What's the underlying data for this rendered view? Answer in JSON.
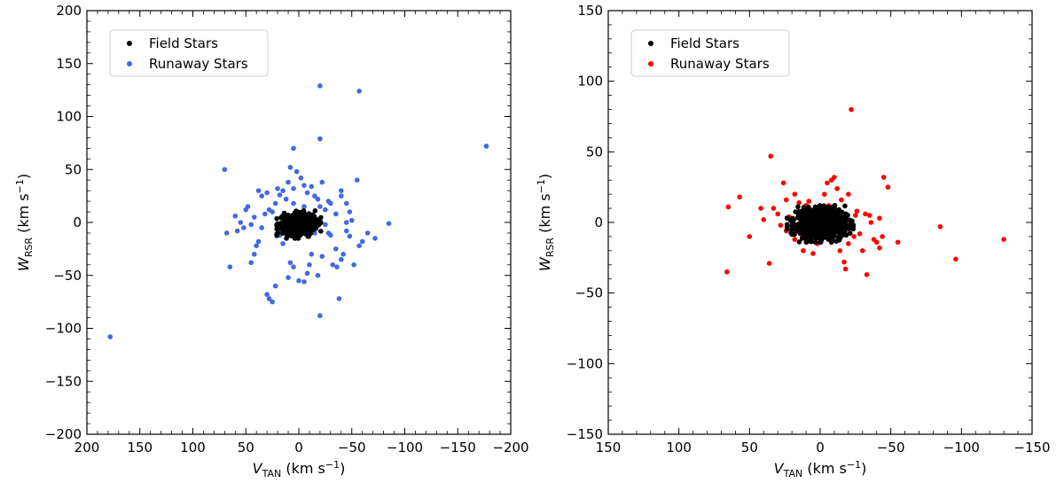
{
  "chart_data": [
    {
      "type": "scatter",
      "xlabel": "V_TAN (km s^-1)",
      "ylabel": "W_RSR (km s^-1)",
      "xlabel_parts": {
        "sym": "V",
        "sub": "TAN",
        "unit": "(km s",
        "exp": "−1",
        "close": ")"
      },
      "ylabel_parts": {
        "sym": "W",
        "sub": "RSR",
        "unit": "(km s",
        "exp": "−1",
        "close": ")"
      },
      "xlim": [
        200,
        -200
      ],
      "ylim": [
        -200,
        200
      ],
      "x_inverted": true,
      "xticks": [
        200,
        150,
        100,
        50,
        0,
        -50,
        -100,
        -150,
        -200
      ],
      "xtick_labels": [
        "200",
        "150",
        "100",
        "50",
        "0",
        "−50",
        "−100",
        "−150",
        "−200"
      ],
      "yticks": [
        -200,
        -150,
        -100,
        -50,
        0,
        50,
        100,
        150,
        200
      ],
      "ytick_labels": [
        "−200",
        "−150",
        "−100",
        "−50",
        "0",
        "50",
        "100",
        "150",
        "200"
      ],
      "legend_position": "top-left",
      "series": [
        {
          "name": "Field Stars",
          "color": "#000000",
          "cluster": {
            "center": [
              0,
              -2
            ],
            "sx": 8,
            "sy": 5,
            "n": 650
          }
        },
        {
          "name": "Runaway Stars",
          "color": "#4169e1",
          "points": [
            [
              178,
              -108
            ],
            [
              -177,
              72
            ],
            [
              -57,
              124
            ],
            [
              -20,
              129
            ],
            [
              -20,
              79
            ],
            [
              5,
              70
            ],
            [
              70,
              50
            ],
            [
              -55,
              40
            ],
            [
              -40,
              30
            ],
            [
              -40,
              25
            ],
            [
              -85,
              -1
            ],
            [
              -72,
              -15
            ],
            [
              -65,
              -10
            ],
            [
              -60,
              -18
            ],
            [
              -57,
              -22
            ],
            [
              -48,
              -13
            ],
            [
              -45,
              -8
            ],
            [
              -42,
              -30
            ],
            [
              -40,
              -35
            ],
            [
              -38,
              -72
            ],
            [
              -36,
              -42
            ],
            [
              -35,
              -25
            ],
            [
              -30,
              -12
            ],
            [
              -28,
              -10
            ],
            [
              -25,
              -2
            ],
            [
              -22,
              -32
            ],
            [
              -20,
              -88
            ],
            [
              -18,
              -50
            ],
            [
              -15,
              -10
            ],
            [
              -12,
              -30
            ],
            [
              -10,
              -40
            ],
            [
              -8,
              -48
            ],
            [
              -5,
              -56
            ],
            [
              0,
              -55
            ],
            [
              5,
              -42
            ],
            [
              8,
              -38
            ],
            [
              10,
              -52
            ],
            [
              15,
              -20
            ],
            [
              18,
              -12
            ],
            [
              20,
              -8
            ],
            [
              -2,
              42
            ],
            [
              -5,
              35
            ],
            [
              -8,
              28
            ],
            [
              -12,
              34
            ],
            [
              -15,
              25
            ],
            [
              -18,
              22
            ],
            [
              -20,
              15
            ],
            [
              -22,
              38
            ],
            [
              -25,
              12
            ],
            [
              -28,
              20
            ],
            [
              -30,
              18
            ],
            [
              -35,
              8
            ],
            [
              -45,
              18
            ],
            [
              -48,
              10
            ],
            [
              2,
              48
            ],
            [
              5,
              32
            ],
            [
              8,
              52
            ],
            [
              10,
              38
            ],
            [
              12,
              22
            ],
            [
              15,
              30
            ],
            [
              18,
              26
            ],
            [
              20,
              32
            ],
            [
              22,
              18
            ],
            [
              25,
              10
            ],
            [
              28,
              12
            ],
            [
              30,
              28
            ],
            [
              32,
              8
            ],
            [
              35,
              -5
            ],
            [
              38,
              -18
            ],
            [
              40,
              -22
            ],
            [
              42,
              -30
            ],
            [
              45,
              -38
            ],
            [
              48,
              15
            ],
            [
              50,
              12
            ],
            [
              52,
              -5
            ],
            [
              55,
              0
            ],
            [
              58,
              -8
            ],
            [
              60,
              6
            ],
            [
              65,
              -42
            ],
            [
              68,
              -10
            ],
            [
              30,
              -68
            ],
            [
              28,
              -72
            ],
            [
              25,
              -75
            ],
            [
              22,
              -60
            ],
            [
              35,
              25
            ],
            [
              38,
              30
            ],
            [
              42,
              5
            ],
            [
              45,
              -2
            ],
            [
              -52,
              -40
            ],
            [
              -50,
              2
            ],
            [
              -45,
              0
            ],
            [
              -32,
              -40
            ],
            [
              -10,
              8
            ],
            [
              -5,
              15
            ],
            [
              5,
              18
            ],
            [
              12,
              5
            ]
          ]
        }
      ]
    },
    {
      "type": "scatter",
      "xlabel": "V_TAN (km s^-1)",
      "ylabel": "W_RSR (km s^-1)",
      "xlabel_parts": {
        "sym": "V",
        "sub": "TAN",
        "unit": "(km s",
        "exp": "−1",
        "close": ")"
      },
      "ylabel_parts": {
        "sym": "W",
        "sub": "RSR",
        "unit": "(km s",
        "exp": "−1",
        "close": ")"
      },
      "xlim": [
        150,
        -150
      ],
      "ylim": [
        -150,
        150
      ],
      "x_inverted": true,
      "xticks": [
        150,
        100,
        50,
        0,
        -50,
        -100,
        -150
      ],
      "xtick_labels": [
        "150",
        "100",
        "50",
        "0",
        "−50",
        "−100",
        "−150"
      ],
      "yticks": [
        -150,
        -100,
        -50,
        0,
        50,
        100,
        150
      ],
      "ytick_labels": [
        "−150",
        "−100",
        "−50",
        "0",
        "50",
        "100",
        "150"
      ],
      "legend_position": "top-left",
      "series": [
        {
          "name": "Field Stars",
          "color": "#000000",
          "cluster": {
            "center": [
              0,
              -1
            ],
            "sx": 9,
            "sy": 5,
            "n": 900
          }
        },
        {
          "name": "Runaway Stars",
          "color": "#ff0000",
          "points": [
            [
              -130,
              -12
            ],
            [
              -96,
              -26
            ],
            [
              -85,
              -3
            ],
            [
              -55,
              -14
            ],
            [
              -48,
              25
            ],
            [
              -45,
              32
            ],
            [
              -44,
              -10
            ],
            [
              -42,
              -18
            ],
            [
              -40,
              -14
            ],
            [
              -38,
              -12
            ],
            [
              -35,
              5
            ],
            [
              -33,
              -37
            ],
            [
              -30,
              -20
            ],
            [
              -28,
              -8
            ],
            [
              -26,
              8
            ],
            [
              -22,
              80
            ],
            [
              -20,
              20
            ],
            [
              -18,
              -33
            ],
            [
              -17,
              -28
            ],
            [
              -15,
              16
            ],
            [
              -14,
              -20
            ],
            [
              -10,
              32
            ],
            [
              -8,
              30
            ],
            [
              -5,
              28
            ],
            [
              -3,
              20
            ],
            [
              -1,
              -10
            ],
            [
              2,
              -15
            ],
            [
              5,
              -22
            ],
            [
              8,
              15
            ],
            [
              10,
              12
            ],
            [
              12,
              -20
            ],
            [
              15,
              14
            ],
            [
              18,
              20
            ],
            [
              20,
              -6
            ],
            [
              22,
              4
            ],
            [
              24,
              16
            ],
            [
              26,
              28
            ],
            [
              28,
              -2
            ],
            [
              30,
              6
            ],
            [
              33,
              10
            ],
            [
              35,
              47
            ],
            [
              36,
              -29
            ],
            [
              40,
              2
            ],
            [
              42,
              10
            ],
            [
              50,
              -10
            ],
            [
              57,
              18
            ],
            [
              65,
              11
            ],
            [
              66,
              -35
            ],
            [
              -25,
              5
            ],
            [
              -32,
              6
            ],
            [
              -36,
              0
            ],
            [
              -42,
              3
            ],
            [
              -12,
              24
            ],
            [
              -6,
              12
            ],
            [
              -2,
              10
            ],
            [
              14,
              -8
            ],
            [
              18,
              -12
            ],
            [
              24,
              -6
            ],
            [
              -20,
              -15
            ],
            [
              -24,
              -10
            ]
          ]
        }
      ]
    }
  ]
}
